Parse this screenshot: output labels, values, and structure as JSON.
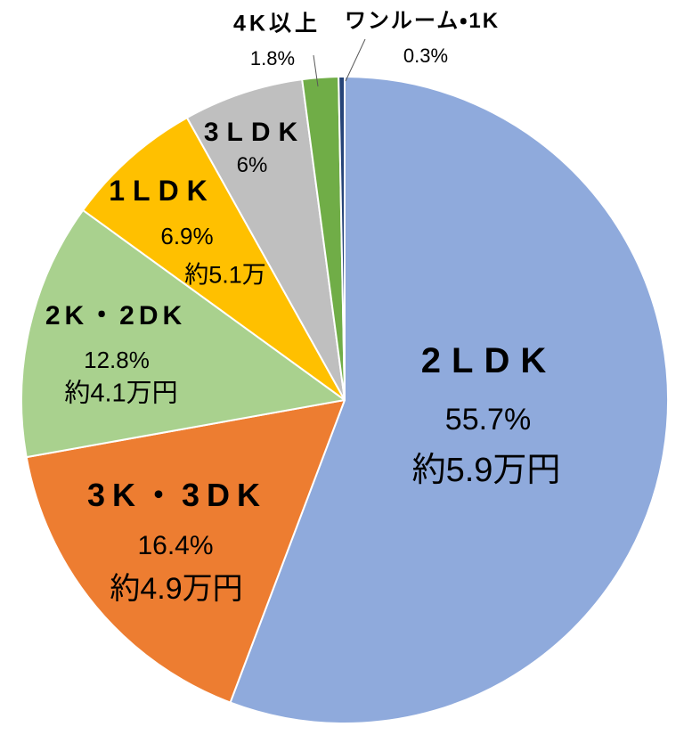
{
  "chart_data": {
    "type": "pie",
    "title": "",
    "direction": "clockwise",
    "start_angle_deg": 0,
    "legend": "none",
    "slices": [
      {
        "id": "2ldk",
        "label": "2LDK",
        "pct": 55.7,
        "pct_label": "55.7%",
        "rent_label": "約5.9万円",
        "color": "#8FAADC"
      },
      {
        "id": "3k-3dk",
        "label": "3K・3DK",
        "pct": 16.4,
        "pct_label": "16.4%",
        "rent_label": "約4.9万円",
        "color": "#ED7D31"
      },
      {
        "id": "2k-2dk",
        "label": "2K・2DK",
        "pct": 12.8,
        "pct_label": "12.8%",
        "rent_label": "約4.1万円",
        "color": "#A9D18E"
      },
      {
        "id": "1ldk",
        "label": "1LDK",
        "pct": 6.9,
        "pct_label": "6.9%",
        "rent_label": "約5.1万",
        "color": "#FFC000"
      },
      {
        "id": "3ldk",
        "label": "3LDK",
        "pct": 6,
        "pct_label": "6%",
        "color": "#BFBFBF"
      },
      {
        "id": "4k-plus",
        "label": "4K以上",
        "pct": 1.8,
        "pct_label": "1.8%",
        "color": "#70AD47"
      },
      {
        "id": "one-room-1k",
        "label": "ワンルーム・1K",
        "pct": 0.3,
        "pct_label": "0.3%",
        "color": "#264478"
      }
    ],
    "slice_border_color": "#FFFFFF",
    "leader_line_color": "#595959"
  }
}
